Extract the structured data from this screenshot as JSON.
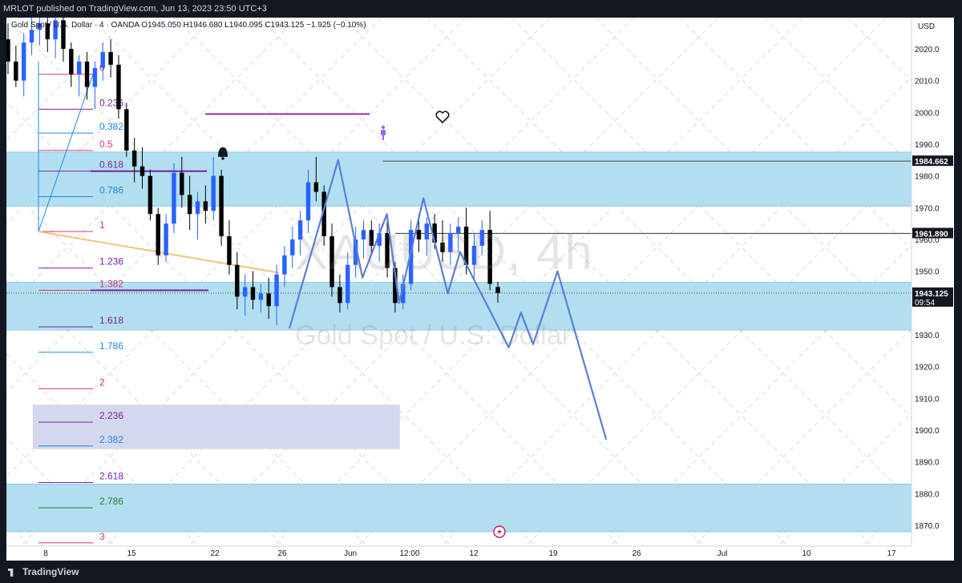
{
  "header": {
    "published_by": "MRLOT published on TradingView.com, Jun 13, 2023 23:50 UTC+3"
  },
  "symbol_line": {
    "name": "Gold Spot / U.S. Dollar",
    "interval": "4",
    "source": "OANDA",
    "ohlc": "O1945.050  H1946.680  L1940.095  C1943.125  −1.925 (−0.10%)"
  },
  "watermark": {
    "ticker": "XAUUSD, 4h",
    "name": "Gold Spot / U.S. Dollar"
  },
  "footer": {
    "brand": "TradingView"
  },
  "colors": {
    "up_candle": "#2962ff",
    "down_candle": "#000000",
    "zone_blue": "#b2dff0",
    "zone_lavender": "#d4d8ee",
    "projection": "#5b7fd6",
    "trendline": "#f5c27a"
  },
  "chart_data": {
    "type": "candlestick",
    "currency_label": "USD",
    "y_ticks": [
      2020,
      2010,
      2000,
      1990,
      1980,
      1970,
      1960,
      1950,
      1940,
      1930,
      1920,
      1910,
      1900,
      1890,
      1880,
      1870
    ],
    "ylim": [
      1865.5,
      2032
    ],
    "x_ticks": [
      "8",
      "15",
      "22",
      "26",
      "Jun",
      "12:00",
      "12",
      "19",
      "26",
      "Jul",
      "10",
      "17"
    ],
    "price_labels": [
      {
        "value": 1984.662,
        "text": "1984.662",
        "style": "dark"
      },
      {
        "value": 1961.89,
        "text": "1961.890",
        "style": "dark"
      },
      {
        "value": 1943.125,
        "text": "1943.125",
        "style": "current",
        "sub": "09:54"
      }
    ],
    "horizontal_lines": [
      {
        "value": 1984.662,
        "from": "Jun 5",
        "color": "#555555"
      },
      {
        "value": 1961.89,
        "from": "Jun 6",
        "color": "#555555"
      }
    ],
    "zones": [
      {
        "from": 1970.5,
        "to": 1987.5,
        "color": "#b2dff0"
      },
      {
        "from": 1931.5,
        "to": 1946.5,
        "color": "#b2dff0"
      },
      {
        "from": 1868,
        "to": 1883,
        "color": "#b2dff0"
      },
      {
        "from": 1894,
        "to": 1908,
        "color": "#d4d8ee",
        "x_from": "May 8",
        "x_to": "Jun 6"
      }
    ],
    "fibonacci": {
      "levels": [
        {
          "ratio": "0",
          "price": 2012.0,
          "color": "#e0336f"
        },
        {
          "ratio": "0.236",
          "price": 2001.0,
          "color": "#7b1fa2"
        },
        {
          "ratio": "0.382",
          "price": 1993.5,
          "color": "#1e88e5"
        },
        {
          "ratio": "0.5",
          "price": 1988.0,
          "color": "#e0336f"
        },
        {
          "ratio": "0.618",
          "price": 1981.5,
          "color": "#7b1fa2"
        },
        {
          "ratio": "0.786",
          "price": 1973.5,
          "color": "#1e88e5"
        },
        {
          "ratio": "1",
          "price": 1962.5,
          "color": "#e0336f"
        },
        {
          "ratio": "1.236",
          "price": 1951.0,
          "color": "#7b1fa2"
        },
        {
          "ratio": "1.382",
          "price": 1944.0,
          "color": "#e0336f"
        },
        {
          "ratio": "1.618",
          "price": 1932.5,
          "color": "#7b1fa2"
        },
        {
          "ratio": "1.786",
          "price": 1924.5,
          "color": "#1e88e5"
        },
        {
          "ratio": "2",
          "price": 1913.0,
          "color": "#e0336f"
        },
        {
          "ratio": "2.236",
          "price": 1902.5,
          "color": "#7b1fa2"
        },
        {
          "ratio": "2.382",
          "price": 1895.0,
          "color": "#1e88e5"
        },
        {
          "ratio": "2.618",
          "price": 1883.5,
          "color": "#7b1fa2"
        },
        {
          "ratio": "2.786",
          "price": 1875.5,
          "color": "#2e7d32"
        },
        {
          "ratio": "3",
          "price": 1864.5,
          "color": "#e0336f"
        }
      ]
    },
    "candles": [
      {
        "o": 2023,
        "h": 2028,
        "l": 2012,
        "c": 2016
      },
      {
        "o": 2016,
        "h": 2021,
        "l": 2008,
        "c": 2010
      },
      {
        "o": 2010,
        "h": 2025,
        "l": 2005,
        "c": 2022
      },
      {
        "o": 2022,
        "h": 2030,
        "l": 2018,
        "c": 2026
      },
      {
        "o": 2026,
        "h": 2032,
        "l": 2021,
        "c": 2028
      },
      {
        "o": 2028,
        "h": 2032,
        "l": 2019,
        "c": 2023
      },
      {
        "o": 2023,
        "h": 2031,
        "l": 2017,
        "c": 2029
      },
      {
        "o": 2029,
        "h": 2032,
        "l": 2016,
        "c": 2020
      },
      {
        "o": 2020,
        "h": 2022,
        "l": 2008,
        "c": 2012
      },
      {
        "o": 2012,
        "h": 2018,
        "l": 2005,
        "c": 2016
      },
      {
        "o": 2016,
        "h": 2019,
        "l": 2004,
        "c": 2008
      },
      {
        "o": 2008,
        "h": 2016,
        "l": 2001,
        "c": 2014
      },
      {
        "o": 2014,
        "h": 2022,
        "l": 2010,
        "c": 2019
      },
      {
        "o": 2019,
        "h": 2023,
        "l": 2011,
        "c": 2015
      },
      {
        "o": 2015,
        "h": 2018,
        "l": 1998,
        "c": 2001
      },
      {
        "o": 2001,
        "h": 2003,
        "l": 1986,
        "c": 1988
      },
      {
        "o": 1988,
        "h": 1992,
        "l": 1978,
        "c": 1983
      },
      {
        "o": 1983,
        "h": 1989,
        "l": 1976,
        "c": 1980
      },
      {
        "o": 1980,
        "h": 1982,
        "l": 1966,
        "c": 1968
      },
      {
        "o": 1968,
        "h": 1970,
        "l": 1952,
        "c": 1955
      },
      {
        "o": 1955,
        "h": 1968,
        "l": 1953,
        "c": 1965
      },
      {
        "o": 1965,
        "h": 1984,
        "l": 1962,
        "c": 1981
      },
      {
        "o": 1981,
        "h": 1986,
        "l": 1970,
        "c": 1974
      },
      {
        "o": 1974,
        "h": 1980,
        "l": 1963,
        "c": 1968
      },
      {
        "o": 1968,
        "h": 1975,
        "l": 1960,
        "c": 1972
      },
      {
        "o": 1972,
        "h": 1977,
        "l": 1965,
        "c": 1969
      },
      {
        "o": 1969,
        "h": 1986,
        "l": 1966,
        "c": 1980
      },
      {
        "o": 1980,
        "h": 1982,
        "l": 1958,
        "c": 1961
      },
      {
        "o": 1961,
        "h": 1966,
        "l": 1949,
        "c": 1952
      },
      {
        "o": 1952,
        "h": 1956,
        "l": 1938,
        "c": 1942
      },
      {
        "o": 1942,
        "h": 1949,
        "l": 1936,
        "c": 1945
      },
      {
        "o": 1945,
        "h": 1950,
        "l": 1938,
        "c": 1941
      },
      {
        "o": 1941,
        "h": 1946,
        "l": 1937,
        "c": 1943
      },
      {
        "o": 1943,
        "h": 1948,
        "l": 1935,
        "c": 1939
      },
      {
        "o": 1939,
        "h": 1952,
        "l": 1933,
        "c": 1949
      },
      {
        "o": 1949,
        "h": 1958,
        "l": 1945,
        "c": 1955
      },
      {
        "o": 1955,
        "h": 1964,
        "l": 1951,
        "c": 1960
      },
      {
        "o": 1960,
        "h": 1969,
        "l": 1955,
        "c": 1966
      },
      {
        "o": 1966,
        "h": 1982,
        "l": 1962,
        "c": 1978
      },
      {
        "o": 1978,
        "h": 1986,
        "l": 1972,
        "c": 1975
      },
      {
        "o": 1975,
        "h": 1977,
        "l": 1958,
        "c": 1961
      },
      {
        "o": 1961,
        "h": 1965,
        "l": 1942,
        "c": 1945
      },
      {
        "o": 1945,
        "h": 1949,
        "l": 1937,
        "c": 1940
      },
      {
        "o": 1940,
        "h": 1956,
        "l": 1938,
        "c": 1952
      },
      {
        "o": 1952,
        "h": 1964,
        "l": 1948,
        "c": 1960
      },
      {
        "o": 1960,
        "h": 1966,
        "l": 1954,
        "c": 1963
      },
      {
        "o": 1963,
        "h": 1966,
        "l": 1955,
        "c": 1958
      },
      {
        "o": 1958,
        "h": 1965,
        "l": 1953,
        "c": 1962
      },
      {
        "o": 1962,
        "h": 1967,
        "l": 1948,
        "c": 1951
      },
      {
        "o": 1951,
        "h": 1953,
        "l": 1937,
        "c": 1940
      },
      {
        "o": 1940,
        "h": 1949,
        "l": 1938,
        "c": 1946
      },
      {
        "o": 1946,
        "h": 1966,
        "l": 1944,
        "c": 1963
      },
      {
        "o": 1963,
        "h": 1968,
        "l": 1956,
        "c": 1960
      },
      {
        "o": 1960,
        "h": 1967,
        "l": 1955,
        "c": 1965
      },
      {
        "o": 1965,
        "h": 1968,
        "l": 1957,
        "c": 1959
      },
      {
        "o": 1959,
        "h": 1966,
        "l": 1953,
        "c": 1956
      },
      {
        "o": 1956,
        "h": 1965,
        "l": 1952,
        "c": 1962
      },
      {
        "o": 1962,
        "h": 1967,
        "l": 1956,
        "c": 1964
      },
      {
        "o": 1964,
        "h": 1970,
        "l": 1949,
        "c": 1952
      },
      {
        "o": 1952,
        "h": 1962,
        "l": 1947,
        "c": 1958
      },
      {
        "o": 1958,
        "h": 1966,
        "l": 1955,
        "c": 1963
      },
      {
        "o": 1963,
        "h": 1969,
        "l": 1944,
        "c": 1946
      },
      {
        "o": 1945.05,
        "h": 1946.68,
        "l": 1940.095,
        "c": 1943.125
      }
    ],
    "projection_path": [
      {
        "d": "May 28",
        "p": 1932
      },
      {
        "d": "Jun 1",
        "p": 1985
      },
      {
        "d": "Jun 3",
        "p": 1948
      },
      {
        "d": "Jun 5",
        "p": 1968
      },
      {
        "d": "Jun 6",
        "p": 1940
      },
      {
        "d": "Jun 8",
        "p": 1973
      },
      {
        "d": "Jun 10",
        "p": 1943
      },
      {
        "d": "Jun 11",
        "p": 1956
      },
      {
        "d": "Jun 15",
        "p": 1926
      },
      {
        "d": "Jun 16",
        "p": 1937
      },
      {
        "d": "Jun 17",
        "p": 1927
      },
      {
        "d": "Jun 19",
        "p": 1950
      },
      {
        "d": "Jun 23",
        "p": 1897
      }
    ]
  }
}
